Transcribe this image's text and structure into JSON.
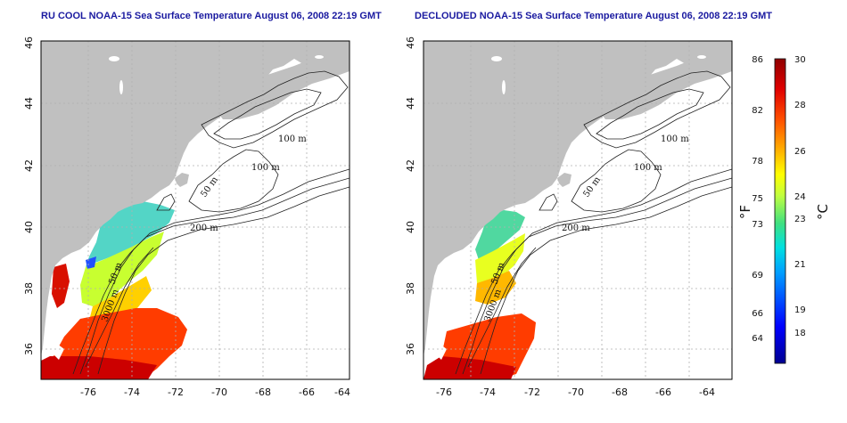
{
  "panels": [
    {
      "title": "RU COOL NOAA-15 Sea Surface Temperature August 06, 2008 22:19 GMT",
      "x_ticks": [
        "-76",
        "-74",
        "-72",
        "-70",
        "-68",
        "-66",
        "-64"
      ],
      "y_ticks": [
        "46",
        "44",
        "42",
        "40",
        "38",
        "36"
      ],
      "contour_labels": [
        "100 m",
        "100 m",
        "50 m",
        "200 m",
        "50 m",
        "3000 m"
      ]
    },
    {
      "title": "DECLOUDED NOAA-15 Sea Surface Temperature August 06, 2008 22:19 GMT",
      "x_ticks": [
        "-76",
        "-74",
        "-72",
        "-70",
        "-68",
        "-66",
        "-64"
      ],
      "y_ticks": [
        "46",
        "44",
        "42",
        "40",
        "38",
        "36"
      ],
      "contour_labels": [
        "100 m",
        "100 m",
        "50 m",
        "200 m",
        "50 m",
        "3000 m"
      ]
    }
  ],
  "colorbar": {
    "unit_f": "°F",
    "unit_c": "°C",
    "f_ticks": [
      "86",
      "82",
      "78",
      "75",
      "73",
      "69",
      "66",
      "64"
    ],
    "c_ticks": [
      "30",
      "28",
      "26",
      "24",
      "23",
      "21",
      "19",
      "18"
    ]
  },
  "colors": {
    "land": "#c0c0c0",
    "title": "#1a1aa0",
    "sst_scale": [
      "#000090",
      "#0000ff",
      "#00a0ff",
      "#00e0e0",
      "#40e080",
      "#c0ff40",
      "#ffff00",
      "#ffb000",
      "#ff5000",
      "#e00000",
      "#900000"
    ]
  }
}
